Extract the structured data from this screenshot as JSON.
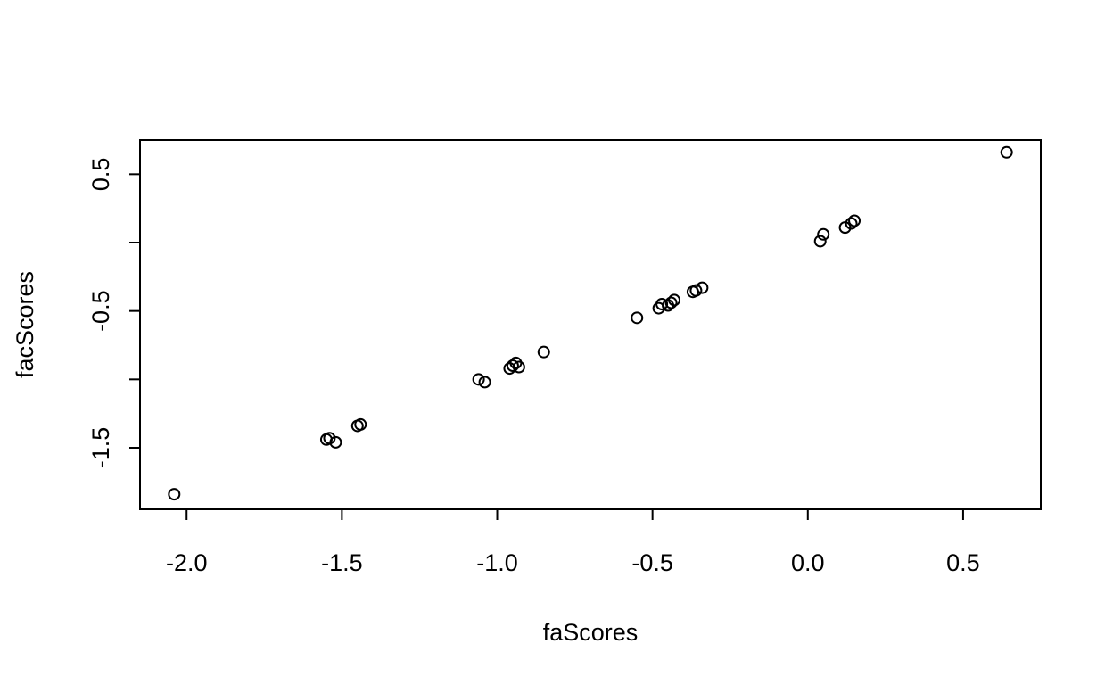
{
  "chart_data": {
    "type": "scatter",
    "title": "",
    "xlabel": "faScores",
    "ylabel": "facScores",
    "xlim": [
      -2.15,
      0.75
    ],
    "ylim": [
      -1.95,
      0.75
    ],
    "x_ticks": [
      -2.0,
      -1.5,
      -1.0,
      -0.5,
      0.0,
      0.5
    ],
    "x_tick_labels": [
      "-2.0",
      "-1.5",
      "-1.0",
      "-0.5",
      "0.0",
      "0.5"
    ],
    "y_ticks": [
      -1.5,
      -0.5,
      0.5
    ],
    "y_tick_labels": [
      "-1.5",
      "-0.5",
      "0.5"
    ],
    "y_minor_ticks": [
      -1.0,
      0.0
    ],
    "grid": false,
    "legend": "none",
    "marker": "open-circle",
    "point_color": "#000000",
    "points": [
      {
        "x": -2.04,
        "y": -1.84
      },
      {
        "x": -1.55,
        "y": -1.44
      },
      {
        "x": -1.54,
        "y": -1.43
      },
      {
        "x": -1.52,
        "y": -1.46
      },
      {
        "x": -1.45,
        "y": -1.34
      },
      {
        "x": -1.44,
        "y": -1.33
      },
      {
        "x": -1.06,
        "y": -1.0
      },
      {
        "x": -1.04,
        "y": -1.02
      },
      {
        "x": -0.96,
        "y": -0.92
      },
      {
        "x": -0.95,
        "y": -0.9
      },
      {
        "x": -0.94,
        "y": -0.88
      },
      {
        "x": -0.93,
        "y": -0.91
      },
      {
        "x": -0.85,
        "y": -0.8
      },
      {
        "x": -0.55,
        "y": -0.55
      },
      {
        "x": -0.48,
        "y": -0.48
      },
      {
        "x": -0.47,
        "y": -0.45
      },
      {
        "x": -0.45,
        "y": -0.46
      },
      {
        "x": -0.44,
        "y": -0.44
      },
      {
        "x": -0.43,
        "y": -0.42
      },
      {
        "x": -0.37,
        "y": -0.36
      },
      {
        "x": -0.36,
        "y": -0.35
      },
      {
        "x": -0.34,
        "y": -0.33
      },
      {
        "x": 0.04,
        "y": 0.01
      },
      {
        "x": 0.05,
        "y": 0.06
      },
      {
        "x": 0.12,
        "y": 0.11
      },
      {
        "x": 0.14,
        "y": 0.14
      },
      {
        "x": 0.15,
        "y": 0.16
      },
      {
        "x": 0.64,
        "y": 0.66
      }
    ]
  }
}
